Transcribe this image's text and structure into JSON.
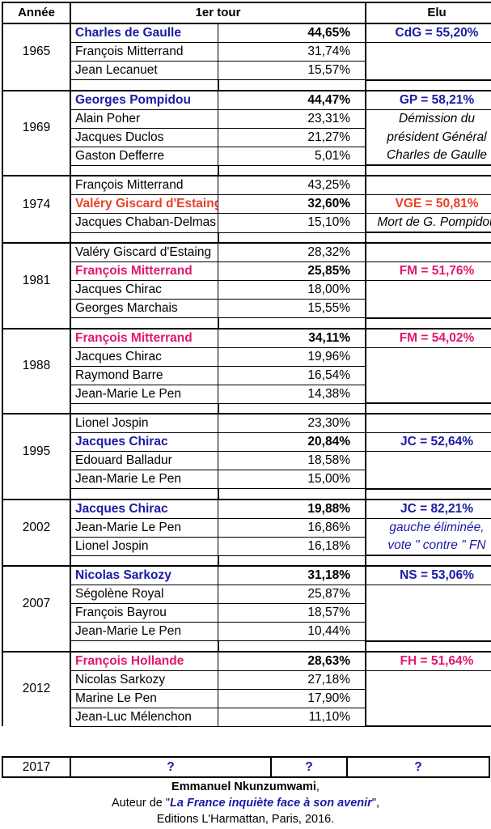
{
  "headers": {
    "year": "Année",
    "round": "1er tour",
    "elected": "Elu"
  },
  "elections": [
    {
      "year": "1965",
      "candidates": [
        {
          "name": "Charles de Gaulle",
          "pct": "44,65%",
          "winner": "blue"
        },
        {
          "name": "François Mitterrand",
          "pct": "31,74%"
        },
        {
          "name": "Jean Lecanuet",
          "pct": "15,57%"
        }
      ],
      "elu": [
        {
          "text": "CdG = 55,20%",
          "style": "blue"
        }
      ]
    },
    {
      "year": "1969",
      "candidates": [
        {
          "name": "Georges Pompidou",
          "pct": "44,47%",
          "winner": "blue"
        },
        {
          "name": "Alain Poher",
          "pct": "23,31%"
        },
        {
          "name": "Jacques Duclos",
          "pct": "21,27%"
        },
        {
          "name": "Gaston Defferre",
          "pct": "5,01%"
        }
      ],
      "elu": [
        {
          "text": "GP = 58,21%",
          "style": "blue"
        },
        {
          "text": "Démission du",
          "style": "note"
        },
        {
          "text": "président Général",
          "style": "note"
        },
        {
          "text": "Charles de Gaulle",
          "style": "note"
        }
      ]
    },
    {
      "year": "1974",
      "candidates": [
        {
          "name": "François Mitterrand",
          "pct": "43,25%"
        },
        {
          "name": "Valéry Giscard d'Estaing",
          "pct": "32,60%",
          "winner": "orange"
        },
        {
          "name": "Jacques Chaban-Delmas",
          "pct": "15,10%"
        }
      ],
      "elu": [
        {
          "text": "",
          "style": ""
        },
        {
          "text": "VGE = 50,81%",
          "style": "orange"
        },
        {
          "text": "Mort de G. Pompidou",
          "style": "note"
        }
      ]
    },
    {
      "year": "1981",
      "candidates": [
        {
          "name": "Valéry Giscard d'Estaing",
          "pct": "28,32%"
        },
        {
          "name": "François Mitterrand",
          "pct": "25,85%",
          "winner": "pink"
        },
        {
          "name": "Jacques Chirac",
          "pct": "18,00%"
        },
        {
          "name": "Georges Marchais",
          "pct": "15,55%"
        }
      ],
      "elu": [
        {
          "text": "",
          "style": ""
        },
        {
          "text": "FM = 51,76%",
          "style": "pink"
        }
      ]
    },
    {
      "year": "1988",
      "candidates": [
        {
          "name": "François Mitterrand",
          "pct": "34,11%",
          "winner": "pink"
        },
        {
          "name": "Jacques Chirac",
          "pct": "19,96%"
        },
        {
          "name": "Raymond Barre",
          "pct": "16,54%"
        },
        {
          "name": "Jean-Marie Le Pen",
          "pct": "14,38%"
        }
      ],
      "elu": [
        {
          "text": "FM = 54,02%",
          "style": "pink"
        }
      ]
    },
    {
      "year": "1995",
      "candidates": [
        {
          "name": "Lionel Jospin",
          "pct": "23,30%"
        },
        {
          "name": "Jacques Chirac",
          "pct": "20,84%",
          "winner": "blue"
        },
        {
          "name": "Edouard Balladur",
          "pct": "18,58%"
        },
        {
          "name": "Jean-Marie Le Pen",
          "pct": "15,00%"
        }
      ],
      "elu": [
        {
          "text": "",
          "style": ""
        },
        {
          "text": "JC = 52,64%",
          "style": "blue"
        }
      ]
    },
    {
      "year": "2002",
      "candidates": [
        {
          "name": "Jacques Chirac",
          "pct": "19,88%",
          "winner": "blue"
        },
        {
          "name": "Jean-Marie Le Pen",
          "pct": "16,86%"
        },
        {
          "name": "Lionel Jospin",
          "pct": "16,18%"
        }
      ],
      "elu": [
        {
          "text": "JC = 82,21%",
          "style": "blue"
        },
        {
          "text": "gauche éliminée,",
          "style": "note-blue"
        },
        {
          "text": "vote \" contre \" FN",
          "style": "note-blue"
        }
      ]
    },
    {
      "year": "2007",
      "candidates": [
        {
          "name": "Nicolas Sarkozy",
          "pct": "31,18%",
          "winner": "blue"
        },
        {
          "name": "Ségolène Royal",
          "pct": "25,87%"
        },
        {
          "name": "François Bayrou",
          "pct": "18,57%"
        },
        {
          "name": "Jean-Marie Le Pen",
          "pct": "10,44%"
        }
      ],
      "elu": [
        {
          "text": "NS = 53,06%",
          "style": "blue"
        }
      ]
    },
    {
      "year": "2012",
      "candidates": [
        {
          "name": "François Hollande",
          "pct": "28,63%",
          "winner": "pink"
        },
        {
          "name": "Nicolas Sarkozy",
          "pct": "27,18%"
        },
        {
          "name": "Marine Le Pen",
          "pct": "17,90%"
        },
        {
          "name": "Jean-Luc Mélenchon",
          "pct": "11,10%"
        }
      ],
      "elu": [
        {
          "text": "FH = 51,64%",
          "style": "pink"
        }
      ]
    }
  ],
  "future": {
    "year": "2017",
    "name": "?",
    "pct": "?",
    "elu": "?"
  },
  "footer": {
    "author": "Emmanuel Nkunzumwami",
    "author_suffix": ",",
    "line2_prefix": "Auteur de \"",
    "book": "La France inquiète face à son avenir",
    "line2_suffix": "\",",
    "line3": "Editions L'Harmattan, Paris, 2016."
  }
}
